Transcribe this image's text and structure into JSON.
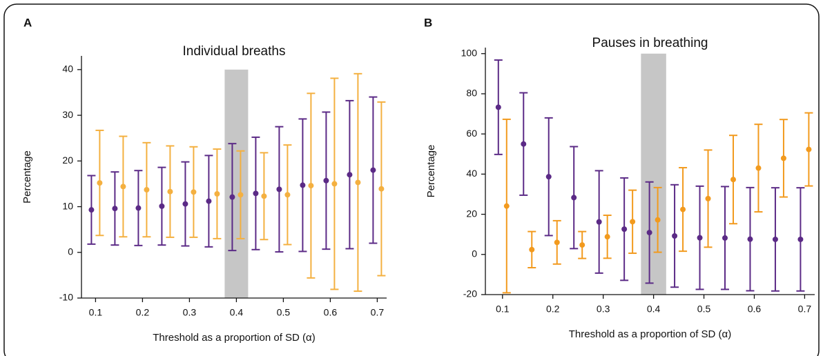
{
  "chart_data": [
    {
      "type": "errorbar",
      "panel_label": "A",
      "title": "Individual breaths",
      "x_label": "Threshold as a proportion of SD (α)",
      "y_label": "Percentage",
      "x": [
        0.1,
        0.15,
        0.2,
        0.25,
        0.3,
        0.35,
        0.4,
        0.45,
        0.5,
        0.55,
        0.6,
        0.65,
        0.7
      ],
      "series": [
        {
          "color": "#5b2a86",
          "values": [
            9.3,
            9.6,
            9.7,
            10.1,
            10.6,
            11.2,
            12.1,
            12.9,
            13.8,
            14.7,
            15.7,
            17.0,
            18.0
          ],
          "errors": [
            7.5,
            8,
            8.2,
            8.5,
            9.2,
            10,
            11.7,
            12.3,
            13.7,
            14.5,
            15,
            16.2,
            16
          ]
        },
        {
          "color": "#f4b040",
          "values": [
            15.2,
            14.4,
            13.7,
            13.3,
            13.2,
            12.8,
            12.6,
            12.3,
            12.6,
            14.6,
            15.0,
            15.3,
            13.9
          ],
          "errors": [
            11.5,
            11,
            10.3,
            10,
            9.9,
            9.8,
            9.6,
            9.5,
            10.9,
            20.2,
            23.1,
            23.8,
            19
          ]
        }
      ],
      "highlight_x": [
        0.375,
        0.425
      ],
      "highlight_color": "#c6c6c6",
      "xlim": [
        0.07,
        0.72
      ],
      "xticks": [
        0.1,
        0.2,
        0.3,
        0.4,
        0.5,
        0.6,
        0.7
      ],
      "ylim": [
        -10,
        43
      ],
      "yticks": [
        -10,
        0,
        10,
        20,
        30,
        40
      ]
    },
    {
      "type": "errorbar",
      "panel_label": "B",
      "title": "Pauses in breathing",
      "x_label": "Threshold as a proportion of SD (α)",
      "y_label": "Percentage",
      "x": [
        0.1,
        0.15,
        0.2,
        0.25,
        0.3,
        0.35,
        0.4,
        0.45,
        0.5,
        0.55,
        0.6,
        0.65,
        0.7
      ],
      "series": [
        {
          "color": "#5b2a86",
          "values": [
            73.3,
            55,
            38.7,
            28.3,
            16.2,
            12.6,
            10.9,
            9.2,
            8.3,
            8.2,
            7.6,
            7.5,
            7.5
          ],
          "errors": [
            23.5,
            25.5,
            29.3,
            25.4,
            25.5,
            25.5,
            25.2,
            25.5,
            25.7,
            25.6,
            25.7,
            25.7,
            25.7
          ]
        },
        {
          "color": "#f29a1e",
          "values": [
            24.1,
            2.4,
            6.0,
            4.7,
            8.8,
            16.3,
            17.2,
            22.4,
            27.8,
            37.3,
            43.0,
            47.9,
            52.3
          ],
          "errors": [
            43.2,
            9,
            10.8,
            6.7,
            10.7,
            15.7,
            16.1,
            20.8,
            24.2,
            22,
            21.8,
            19.3,
            18.2
          ]
        }
      ],
      "highlight_x": [
        0.375,
        0.425
      ],
      "highlight_color": "#c6c6c6",
      "xlim": [
        0.066,
        0.72
      ],
      "xticks": [
        0.1,
        0.2,
        0.3,
        0.4,
        0.5,
        0.6,
        0.7
      ],
      "ylim": [
        -20,
        103
      ],
      "yticks": [
        -20,
        0,
        20,
        40,
        60,
        80,
        100
      ]
    }
  ]
}
